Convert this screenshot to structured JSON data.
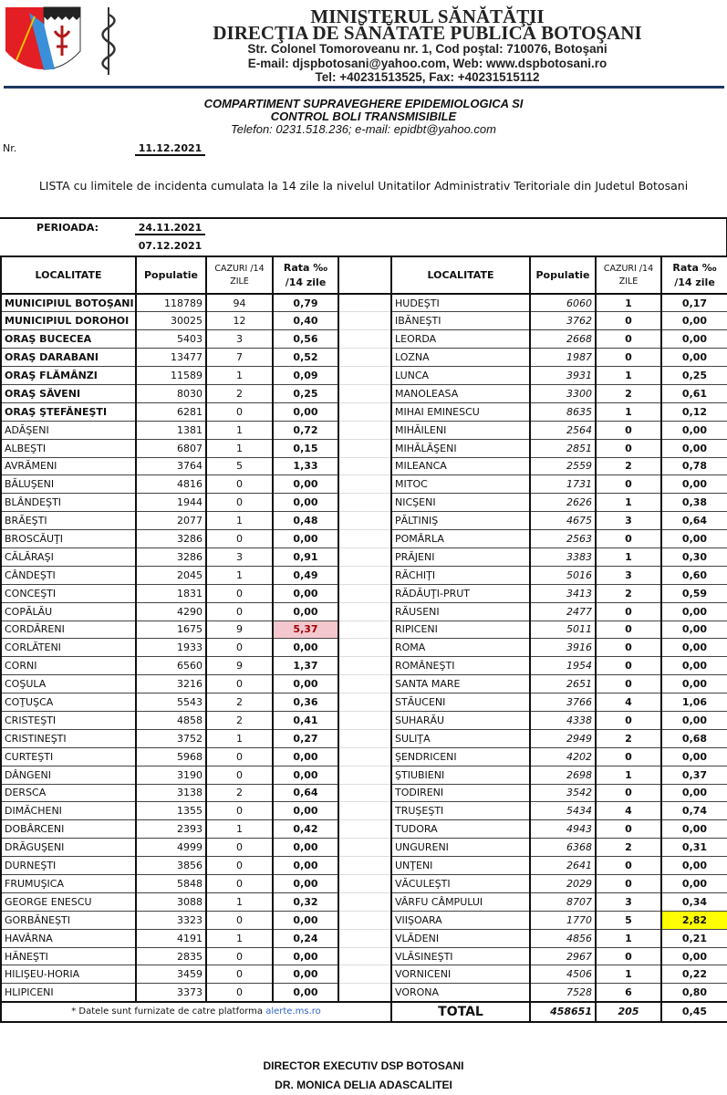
{
  "header": {
    "line1": "MINISTERUL SĂNĂTĂŢII",
    "line2": "DIRECŢIA DE SĂNĂTATE PUBLICĂ BOTOŞANI",
    "address": "Str. Colonel Tomoroveanu nr. 1, Cod poştal: 710076, Botoşani",
    "email_web": "E-mail: djspbotosani@yahoo.com,  Web: www.dspbotosani.ro",
    "tel": "Tel: +40231513525, Fax: +40231515112"
  },
  "department": {
    "line1": "COMPARTIMENT SUPRAVEGHERE EPIDEMIOLOGICA SI",
    "line2": "CONTROL BOLI TRANSMISIBILE",
    "contact": "Telefon: 0231.518.236;  e-mail: epidbt@yahoo.com"
  },
  "nr_label": "Nr.",
  "nr_date": "11.12.2021",
  "title": "LISTA cu limitele de incidenta cumulata la 14 zile la nivelul Unitatilor Administrativ Teritoriale din Judetul Botosani",
  "period": {
    "label": "PERIOADA:",
    "from": "24.11.2021",
    "to": "07.12.2021"
  },
  "columns": {
    "locality": "LOCALITATE",
    "population": "Populatie",
    "cases": "CAZURI /14 ZILE",
    "rate": "Rata ‰ /14 zile"
  },
  "highlight_colors": {
    "high": "#f4c7ce",
    "warning": "#ffff00"
  },
  "left_rows": [
    [
      "MUNICIPIUL BOTOŞANI",
      "118789",
      "94",
      "0,79"
    ],
    [
      "MUNICIPIUL DOROHOI",
      "30025",
      "12",
      "0,40"
    ],
    [
      "ORAŞ BUCECEA",
      "5403",
      "3",
      "0,56"
    ],
    [
      "ORAŞ DARABANI",
      "13477",
      "7",
      "0,52"
    ],
    [
      "ORAŞ FLĂMÂNZI",
      "11589",
      "1",
      "0,09"
    ],
    [
      "ORAŞ SĂVENI",
      "8030",
      "2",
      "0,25"
    ],
    [
      "ORAŞ ŞTEFĂNEŞTI",
      "6281",
      "0",
      "0,00"
    ],
    [
      "ADĂŞENI",
      "1381",
      "1",
      "0,72"
    ],
    [
      "ALBEŞTI",
      "6807",
      "1",
      "0,15"
    ],
    [
      "AVRĂMENI",
      "3764",
      "5",
      "1,33"
    ],
    [
      "BĂLUŞENI",
      "4816",
      "0",
      "0,00"
    ],
    [
      "BLÂNDEŞTI",
      "1944",
      "0",
      "0,00"
    ],
    [
      "BRĂEŞTI",
      "2077",
      "1",
      "0,48"
    ],
    [
      "BROSCĂUŢI",
      "3286",
      "0",
      "0,00"
    ],
    [
      "CĂLĂRAŞI",
      "3286",
      "3",
      "0,91"
    ],
    [
      "CÂNDEŞTI",
      "2045",
      "1",
      "0,49"
    ],
    [
      "CONCEŞTI",
      "1831",
      "0",
      "0,00"
    ],
    [
      "COPĂLĂU",
      "4290",
      "0",
      "0,00"
    ],
    [
      "CORDĂRENI",
      "1675",
      "9",
      "5,37"
    ],
    [
      "CORLĂTENI",
      "1933",
      "0",
      "0,00"
    ],
    [
      "CORNI",
      "6560",
      "9",
      "1,37"
    ],
    [
      "COŞULA",
      "3216",
      "0",
      "0,00"
    ],
    [
      "COŢUŞCA",
      "5543",
      "2",
      "0,36"
    ],
    [
      "CRISTEŞTI",
      "4858",
      "2",
      "0,41"
    ],
    [
      "CRISTINEŞTI",
      "3752",
      "1",
      "0,27"
    ],
    [
      "CURTEŞTI",
      "5968",
      "0",
      "0,00"
    ],
    [
      "DÂNGENI",
      "3190",
      "0",
      "0,00"
    ],
    [
      "DERSCA",
      "3138",
      "2",
      "0,64"
    ],
    [
      "DIMĂCHENI",
      "1355",
      "0",
      "0,00"
    ],
    [
      "DOBÂRCENI",
      "2393",
      "1",
      "0,42"
    ],
    [
      "DRĂGUŞENI",
      "4999",
      "0",
      "0,00"
    ],
    [
      "DURNEŞTI",
      "3856",
      "0",
      "0,00"
    ],
    [
      "FRUMUŞICA",
      "5848",
      "0",
      "0,00"
    ],
    [
      "GEORGE ENESCU",
      "3088",
      "1",
      "0,32"
    ],
    [
      "GORBĂNEŞTI",
      "3323",
      "0",
      "0,00"
    ],
    [
      "HAVÂRNA",
      "4191",
      "1",
      "0,24"
    ],
    [
      "HĂNEŞTI",
      "2835",
      "0",
      "0,00"
    ],
    [
      "HILIŞEU-HORIA",
      "3459",
      "0",
      "0,00"
    ],
    [
      "HLIPICENI",
      "3373",
      "0",
      "0,00"
    ]
  ],
  "right_rows": [
    [
      "HUDEŞTI",
      "6060",
      "1",
      "0,17"
    ],
    [
      "IBĂNEŞTI",
      "3762",
      "0",
      "0,00"
    ],
    [
      "LEORDA",
      "2668",
      "0",
      "0,00"
    ],
    [
      "LOZNA",
      "1987",
      "0",
      "0,00"
    ],
    [
      "LUNCA",
      "3931",
      "1",
      "0,25"
    ],
    [
      "MANOLEASA",
      "3300",
      "2",
      "0,61"
    ],
    [
      "MIHAI EMINESCU",
      "8635",
      "1",
      "0,12"
    ],
    [
      "MIHĂILENI",
      "2564",
      "0",
      "0,00"
    ],
    [
      "MIHĂLĂŞENI",
      "2851",
      "0",
      "0,00"
    ],
    [
      "MILEANCA",
      "2559",
      "2",
      "0,78"
    ],
    [
      "MITOC",
      "1731",
      "0",
      "0,00"
    ],
    [
      "NICŞENI",
      "2626",
      "1",
      "0,38"
    ],
    [
      "PĂLTINIŞ",
      "4675",
      "3",
      "0,64"
    ],
    [
      "POMÂRLA",
      "2563",
      "0",
      "0,00"
    ],
    [
      "PRĂJENI",
      "3383",
      "1",
      "0,30"
    ],
    [
      "RĂCHIŢI",
      "5016",
      "3",
      "0,60"
    ],
    [
      "RĂDĂUŢI-PRUT",
      "3413",
      "2",
      "0,59"
    ],
    [
      "RĂUSENI",
      "2477",
      "0",
      "0,00"
    ],
    [
      "RIPICENI",
      "5011",
      "0",
      "0,00"
    ],
    [
      "ROMA",
      "3916",
      "0",
      "0,00"
    ],
    [
      "ROMÂNEŞTI",
      "1954",
      "0",
      "0,00"
    ],
    [
      "SANTA MARE",
      "2651",
      "0",
      "0,00"
    ],
    [
      "STĂUCENI",
      "3766",
      "4",
      "1,06"
    ],
    [
      "SUHARĂU",
      "4338",
      "0",
      "0,00"
    ],
    [
      "SULIŢA",
      "2949",
      "2",
      "0,68"
    ],
    [
      "ŞENDRICENI",
      "4202",
      "0",
      "0,00"
    ],
    [
      "ŞTIUBIENI",
      "2698",
      "1",
      "0,37"
    ],
    [
      "TODIRENI",
      "3542",
      "0",
      "0,00"
    ],
    [
      "TRUŞEŞTI",
      "5434",
      "4",
      "0,74"
    ],
    [
      "TUDORA",
      "4943",
      "0",
      "0,00"
    ],
    [
      "UNGURENI",
      "6368",
      "2",
      "0,31"
    ],
    [
      "UNŢENI",
      "2641",
      "0",
      "0,00"
    ],
    [
      "VĂCULEŞTI",
      "2029",
      "0",
      "0,00"
    ],
    [
      "VÂRFU CÂMPULUI",
      "8707",
      "3",
      "0,34"
    ],
    [
      "VIIŞOARA",
      "1770",
      "5",
      "2,82"
    ],
    [
      "VLĂDENI",
      "4856",
      "1",
      "0,21"
    ],
    [
      "VLĂSINEŞTI",
      "2967",
      "0",
      "0,00"
    ],
    [
      "VORNICENI",
      "4506",
      "1",
      "0,22"
    ],
    [
      "VORONA",
      "7528",
      "6",
      "0,80"
    ]
  ],
  "footnote": "* Datele sunt furnizate de catre platforma ",
  "footnote_link": "alerte.ms.ro",
  "total": {
    "label": "TOTAL",
    "population": "458651",
    "cases": "205",
    "rate": "0,45"
  },
  "signature": {
    "role": "DIRECTOR EXECUTIV DSP BOTOSANI",
    "name": "DR. MONICA DELIA ADASCALITEI"
  }
}
